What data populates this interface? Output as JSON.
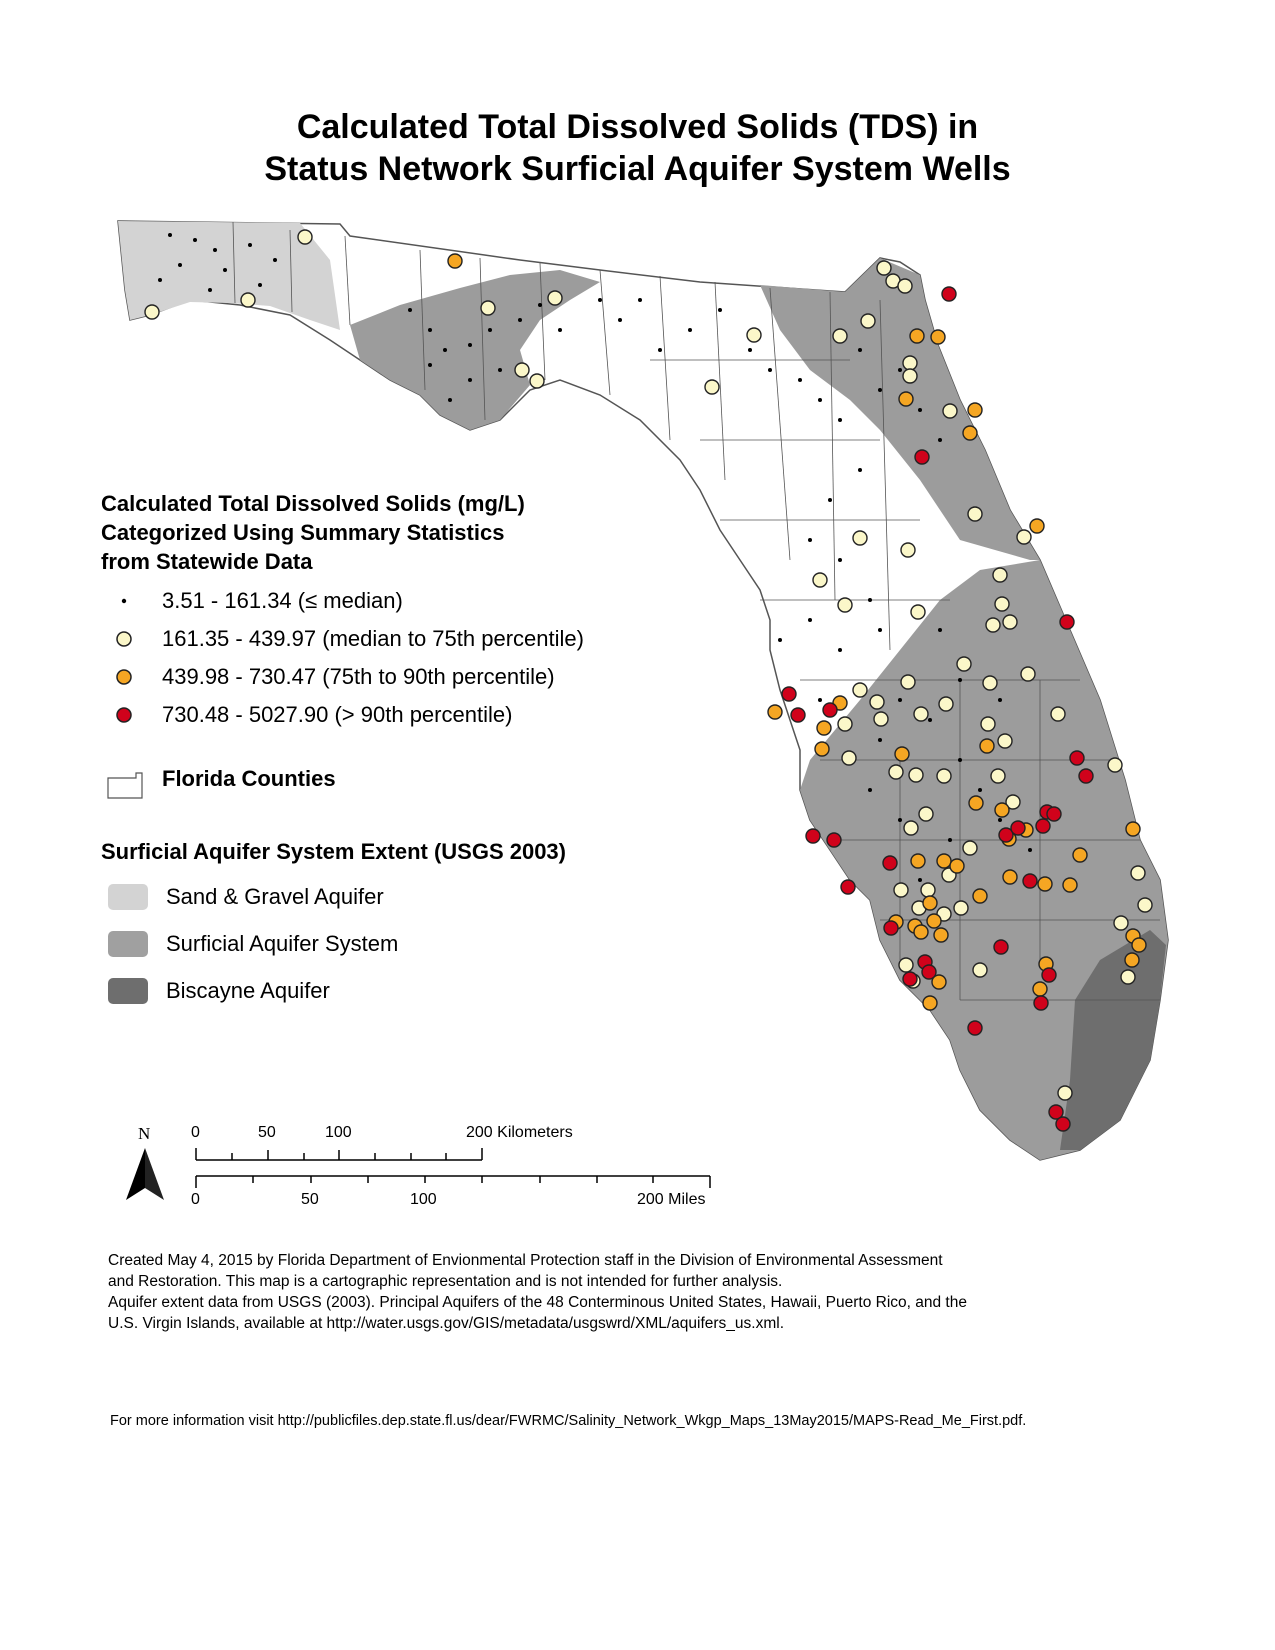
{
  "title": {
    "line1": "Calculated Total Dissolved Solids (TDS) in",
    "line2": "Status Network Surficial Aquifer System Wells"
  },
  "legend": {
    "tds_heading": [
      "Calculated Total Dissolved Solids (mg/L)",
      "Categorized Using Summary Statistics",
      "from Statewide Data"
    ],
    "tds_classes": [
      {
        "label": "3.51 - 161.34 (≤ median)",
        "color": "#000000",
        "symbol": "small-dot"
      },
      {
        "label": "161.35 - 439.97 (median to 75th percentile)",
        "color": "#fbf7c9",
        "symbol": "circle"
      },
      {
        "label": "439.98 - 730.47 (75th to 90th percentile)",
        "color": "#f5a623",
        "symbol": "circle"
      },
      {
        "label": "730.48 - 5027.90 (> 90th percentile)",
        "color": "#d0021b",
        "symbol": "circle"
      }
    ],
    "counties_label": "Florida Counties",
    "aquifer_heading": "Surficial Aquifer System Extent (USGS 2003)",
    "aquifers": [
      {
        "label": "Sand & Gravel Aquifer",
        "color": "#d3d3d3"
      },
      {
        "label": "Surficial Aquifer System",
        "color": "#a0a0a0"
      },
      {
        "label": "Biscayne Aquifer",
        "color": "#6e6e6e"
      }
    ]
  },
  "scale_bar": {
    "north_label": "N",
    "km_ticks": [
      "0",
      "50",
      "100",
      "200 Kilometers"
    ],
    "mile_ticks": [
      "0",
      "50",
      "100",
      "200 Miles"
    ]
  },
  "credits": [
    "Created May 4, 2015 by Florida Department of Envionmental Protection staff in the Division of Environmental Assessment",
    "and Restoration.  This map is a cartographic representation and is not intended for further analysis.",
    "Aquifer extent data from USGS (2003). Principal Aquifers of the 48 Conterminous United States, Hawaii, Puerto Rico, and the",
    "U.S. Virgin Islands, available at http://water.usgs.gov/GIS/metadata/usgswrd/XML/aquifers_us.xml."
  ],
  "footer": "For more information visit http://publicfiles.dep.state.fl.us/dear/FWRMC/Salinity_Network_Wkgp_Maps_13May2015/MAPS-Read_Me_First.pdf."
}
